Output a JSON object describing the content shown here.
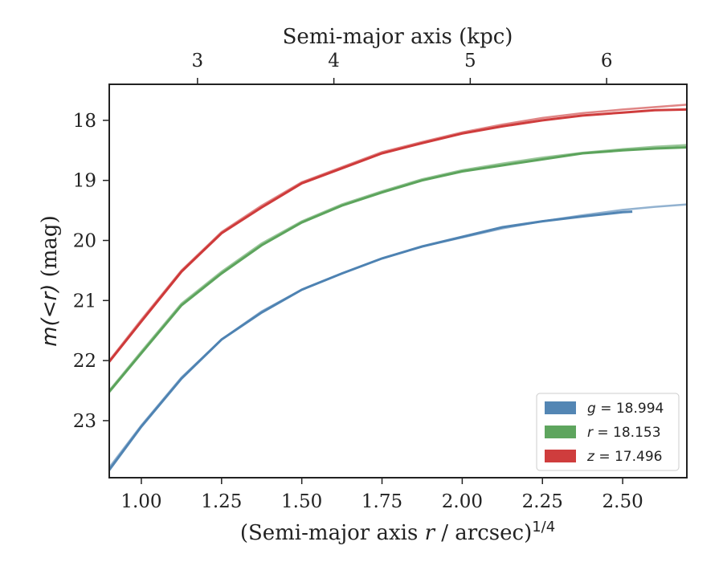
{
  "chart_data": {
    "type": "line",
    "xlabel_main": "(Semi-major axis ",
    "xlabel_var": "r",
    "xlabel_tail": " / arcsec)",
    "xlabel_sup": "1/4",
    "xlabel_top": "Semi-major axis (kpc)",
    "ylabel_prefix": "m(<r)",
    "ylabel_suffix": "(mag)",
    "xlim": [
      0.9,
      2.7
    ],
    "ylim": [
      23.95,
      17.4
    ],
    "x_ticks": [
      1.0,
      1.25,
      1.5,
      1.75,
      2.0,
      2.25,
      2.5
    ],
    "x_tick_labels": [
      "1.00",
      "1.25",
      "1.50",
      "1.75",
      "2.00",
      "2.25",
      "2.50"
    ],
    "y_ticks": [
      18,
      19,
      20,
      21,
      22,
      23
    ],
    "y_tick_labels": [
      "18",
      "19",
      "20",
      "21",
      "22",
      "23"
    ],
    "top_ticks": [
      1.175,
      1.6,
      2.025,
      2.45
    ],
    "top_tick_labels": [
      "3",
      "4",
      "5",
      "6"
    ],
    "legend_position": "lower-right",
    "series": [
      {
        "name": "g = 18.994",
        "legend_var": "g",
        "legend_value": "= 18.994",
        "color": "#4a7fb0",
        "points": [
          [
            0.9,
            23.82
          ],
          [
            1.0,
            23.1
          ],
          [
            1.125,
            22.3
          ],
          [
            1.25,
            21.65
          ],
          [
            1.375,
            21.2
          ],
          [
            1.5,
            20.82
          ],
          [
            1.625,
            20.55
          ],
          [
            1.75,
            20.3
          ],
          [
            1.875,
            20.1
          ],
          [
            2.0,
            19.94
          ],
          [
            2.125,
            19.78
          ],
          [
            2.25,
            19.68
          ],
          [
            2.375,
            19.6
          ],
          [
            2.5,
            19.53
          ],
          [
            2.53,
            19.52
          ]
        ],
        "model_points": [
          [
            0.9,
            23.78
          ],
          [
            1.0,
            23.08
          ],
          [
            1.125,
            22.28
          ],
          [
            1.25,
            21.65
          ],
          [
            1.375,
            21.18
          ],
          [
            1.5,
            20.82
          ],
          [
            1.625,
            20.55
          ],
          [
            1.75,
            20.3
          ],
          [
            1.875,
            20.1
          ],
          [
            2.0,
            19.95
          ],
          [
            2.125,
            19.8
          ],
          [
            2.25,
            19.68
          ],
          [
            2.375,
            19.58
          ],
          [
            2.5,
            19.49
          ],
          [
            2.6,
            19.44
          ],
          [
            2.7,
            19.4
          ]
        ]
      },
      {
        "name": "r = 18.153",
        "legend_var": "r",
        "legend_value": "= 18.153",
        "color": "#55a055",
        "points": [
          [
            0.9,
            22.52
          ],
          [
            1.0,
            21.88
          ],
          [
            1.125,
            21.08
          ],
          [
            1.25,
            20.55
          ],
          [
            1.375,
            20.08
          ],
          [
            1.5,
            19.7
          ],
          [
            1.625,
            19.42
          ],
          [
            1.75,
            19.2
          ],
          [
            1.875,
            19.0
          ],
          [
            2.0,
            18.85
          ],
          [
            2.125,
            18.75
          ],
          [
            2.25,
            18.65
          ],
          [
            2.375,
            18.55
          ],
          [
            2.5,
            18.5
          ],
          [
            2.6,
            18.47
          ],
          [
            2.7,
            18.45
          ]
        ],
        "model_points": [
          [
            0.9,
            22.5
          ],
          [
            1.0,
            21.85
          ],
          [
            1.125,
            21.05
          ],
          [
            1.25,
            20.52
          ],
          [
            1.375,
            20.05
          ],
          [
            1.5,
            19.68
          ],
          [
            1.625,
            19.4
          ],
          [
            1.75,
            19.18
          ],
          [
            1.875,
            18.98
          ],
          [
            2.0,
            18.83
          ],
          [
            2.125,
            18.72
          ],
          [
            2.25,
            18.62
          ],
          [
            2.375,
            18.54
          ],
          [
            2.5,
            18.48
          ],
          [
            2.6,
            18.44
          ],
          [
            2.7,
            18.41
          ]
        ]
      },
      {
        "name": "z = 17.496",
        "legend_var": "z",
        "legend_value": "= 17.496",
        "color": "#cc3333",
        "points": [
          [
            0.9,
            22.02
          ],
          [
            1.0,
            21.35
          ],
          [
            1.125,
            20.52
          ],
          [
            1.25,
            19.88
          ],
          [
            1.375,
            19.45
          ],
          [
            1.5,
            19.05
          ],
          [
            1.625,
            18.8
          ],
          [
            1.75,
            18.55
          ],
          [
            1.875,
            18.38
          ],
          [
            2.0,
            18.22
          ],
          [
            2.125,
            18.1
          ],
          [
            2.25,
            18.0
          ],
          [
            2.375,
            17.92
          ],
          [
            2.5,
            17.87
          ],
          [
            2.6,
            17.83
          ],
          [
            2.7,
            17.82
          ]
        ],
        "model_points": [
          [
            0.9,
            22.0
          ],
          [
            1.0,
            21.32
          ],
          [
            1.125,
            20.5
          ],
          [
            1.25,
            19.86
          ],
          [
            1.375,
            19.42
          ],
          [
            1.5,
            19.03
          ],
          [
            1.625,
            18.78
          ],
          [
            1.75,
            18.53
          ],
          [
            1.875,
            18.36
          ],
          [
            2.0,
            18.2
          ],
          [
            2.125,
            18.07
          ],
          [
            2.25,
            17.96
          ],
          [
            2.375,
            17.88
          ],
          [
            2.5,
            17.82
          ],
          [
            2.6,
            17.78
          ],
          [
            2.7,
            17.74
          ]
        ]
      }
    ]
  }
}
